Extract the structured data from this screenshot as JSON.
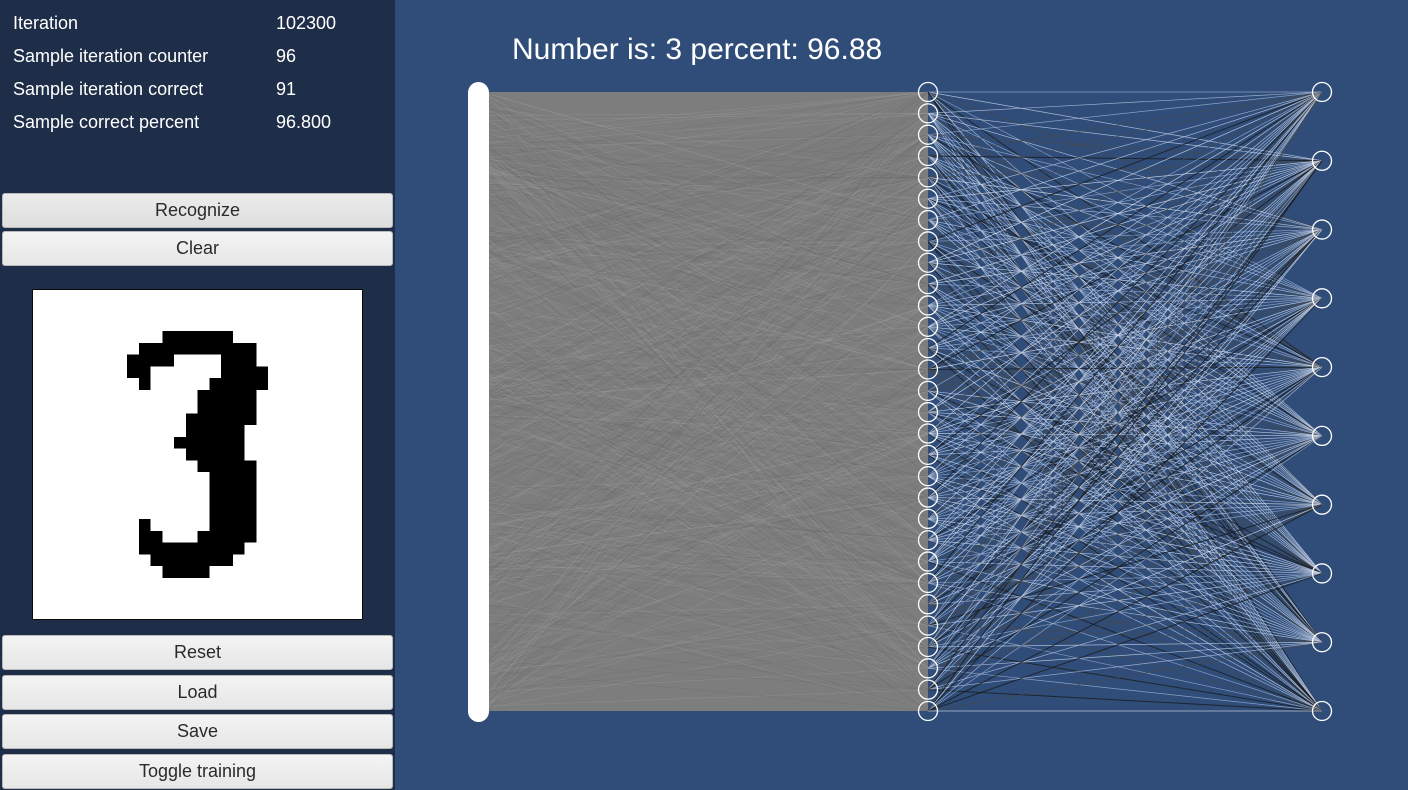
{
  "stats": {
    "iteration": {
      "label": "Iteration",
      "value": "102300"
    },
    "sample_counter": {
      "label": "Sample iteration counter",
      "value": "96"
    },
    "sample_correct": {
      "label": "Sample iteration correct",
      "value": "91"
    },
    "sample_percent": {
      "label": "Sample correct percent",
      "value": "96.800"
    }
  },
  "buttons": {
    "recognize": "Recognize",
    "clear": "Clear",
    "reset": "Reset",
    "load": "Load",
    "save": "Save",
    "toggle_training": "Toggle training"
  },
  "result": {
    "text": "Number is: 3 percent: 96.88"
  },
  "drawing": {
    "digit": "3"
  },
  "network": {
    "hidden_node_count": 30,
    "output_node_count": 10
  },
  "colors": {
    "background": "#2f4d78",
    "panel": "#1f2e48",
    "weights_gray": "#888888",
    "node_outline": "#ffffff"
  }
}
